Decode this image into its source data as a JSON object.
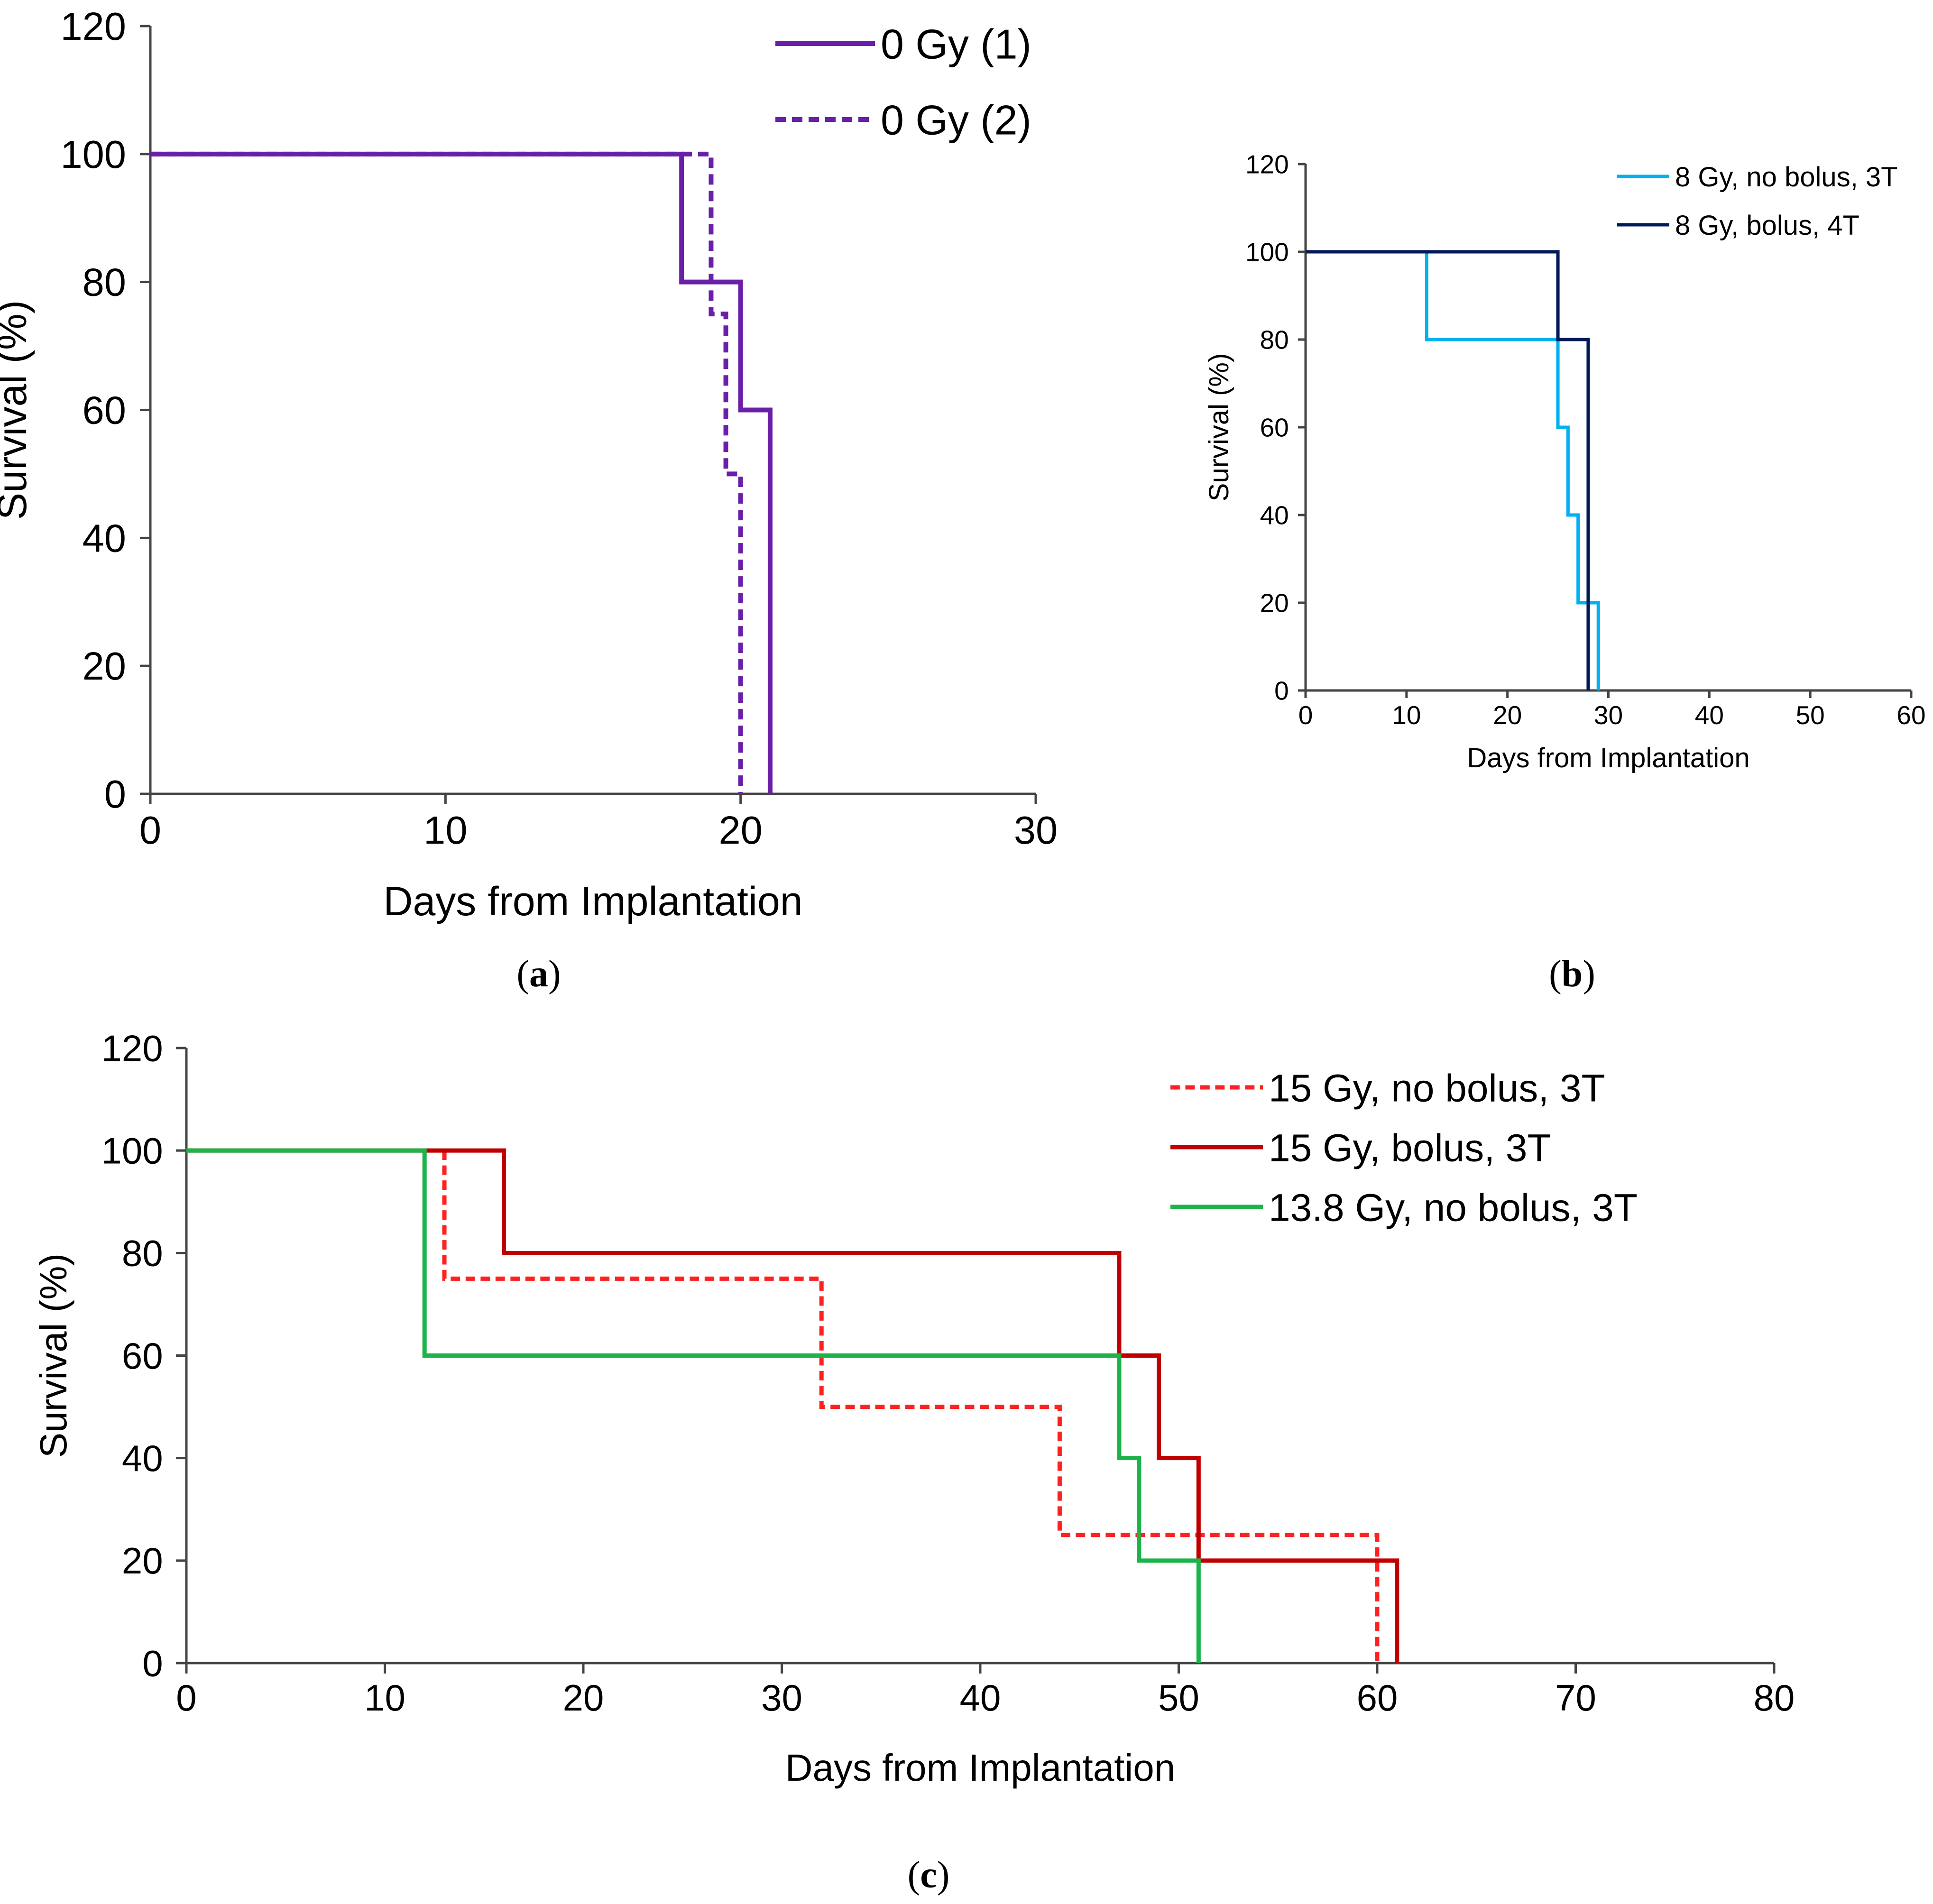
{
  "chart_data": [
    {
      "type": "line",
      "panel_label": "a",
      "title": "",
      "xlabel": "Days from Implantation",
      "ylabel": "Survival (%)",
      "xlim": [
        0,
        30
      ],
      "ylim": [
        0,
        120
      ],
      "xticks": [
        0,
        10,
        20,
        30
      ],
      "yticks": [
        0,
        20,
        40,
        60,
        80,
        100,
        120
      ],
      "grid": false,
      "legend_position": "top-right",
      "step": true,
      "series": [
        {
          "name": "0 Gy (1)",
          "color": "#6a1fa8",
          "dashed": false,
          "x": [
            0,
            18,
            18,
            20,
            20,
            21,
            21
          ],
          "y": [
            100,
            100,
            80,
            80,
            60,
            60,
            0
          ]
        },
        {
          "name": "0 Gy (2)",
          "color": "#6a1fa8",
          "dashed": true,
          "x": [
            0,
            19,
            19,
            19.5,
            19.5,
            20,
            20
          ],
          "y": [
            100,
            100,
            75,
            75,
            50,
            50,
            0
          ]
        }
      ]
    },
    {
      "type": "line",
      "panel_label": "b",
      "title": "",
      "xlabel": "Days from Implantation",
      "ylabel": "Survival (%)",
      "xlim": [
        0,
        60
      ],
      "ylim": [
        0,
        120
      ],
      "xticks": [
        0,
        10,
        20,
        30,
        40,
        50,
        60
      ],
      "yticks": [
        0,
        20,
        40,
        60,
        80,
        100,
        120
      ],
      "grid": false,
      "legend_position": "top-right",
      "step": true,
      "series": [
        {
          "name": "8 Gy, no bolus, 3T",
          "color": "#00b0f0",
          "dashed": false,
          "x": [
            0,
            12,
            12,
            25,
            25,
            26,
            26,
            27,
            27,
            29,
            29
          ],
          "y": [
            100,
            100,
            80,
            80,
            60,
            60,
            40,
            40,
            20,
            20,
            0
          ]
        },
        {
          "name": "8 Gy, bolus, 4T",
          "color": "#001a57",
          "dashed": false,
          "x": [
            0,
            25,
            25,
            28,
            28
          ],
          "y": [
            100,
            100,
            80,
            80,
            0
          ]
        }
      ]
    },
    {
      "type": "line",
      "panel_label": "c",
      "title": "",
      "xlabel": "Days from Implantation",
      "ylabel": "Survival (%)",
      "xlim": [
        0,
        80
      ],
      "ylim": [
        0,
        120
      ],
      "xticks": [
        0,
        10,
        20,
        30,
        40,
        50,
        60,
        70,
        80
      ],
      "yticks": [
        0,
        20,
        40,
        60,
        80,
        100,
        120
      ],
      "grid": false,
      "legend_position": "top-right",
      "step": true,
      "series": [
        {
          "name": "15 Gy, no bolus, 3T",
          "color": "#ff2020",
          "dashed": true,
          "x": [
            13,
            13,
            32,
            32,
            44,
            44,
            60,
            60
          ],
          "y": [
            100,
            75,
            75,
            50,
            50,
            25,
            25,
            0
          ]
        },
        {
          "name": "15 Gy, bolus, 3T",
          "color": "#c00000",
          "dashed": false,
          "x": [
            0,
            16,
            16,
            47,
            47,
            49,
            49,
            51,
            51,
            61,
            61
          ],
          "y": [
            100,
            100,
            80,
            80,
            60,
            60,
            40,
            40,
            20,
            20,
            0
          ]
        },
        {
          "name": "13.8 Gy, no bolus, 3T",
          "color": "#1db34a",
          "dashed": false,
          "x": [
            0,
            12,
            12,
            47,
            47,
            48,
            48,
            51,
            51
          ],
          "y": [
            100,
            100,
            60,
            60,
            40,
            40,
            20,
            20,
            0
          ]
        }
      ]
    }
  ]
}
